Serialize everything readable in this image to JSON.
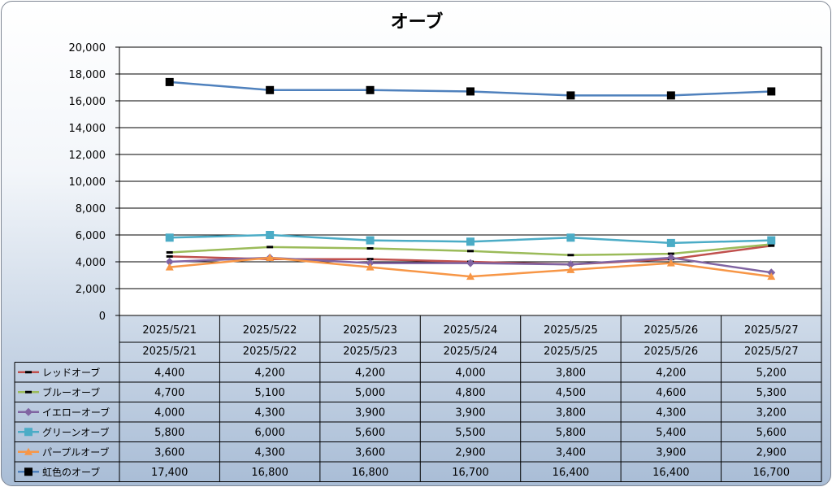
{
  "chart_data": {
    "type": "line",
    "title": "オーブ",
    "categories": [
      "2025/5/21",
      "2025/5/22",
      "2025/5/23",
      "2025/5/24",
      "2025/5/25",
      "2025/5/26",
      "2025/5/27"
    ],
    "ylim": [
      0,
      20000
    ],
    "yticks": [
      "0",
      "2,000",
      "4,000",
      "6,000",
      "8,000",
      "10,000",
      "12,000",
      "14,000",
      "16,000",
      "18,000",
      "20,000"
    ],
    "grid": true,
    "data_table": true,
    "series": [
      {
        "name": "レッドオーブ",
        "color": "#c0504d",
        "marker": "dash",
        "values": [
          4400,
          4200,
          4200,
          4000,
          3800,
          4200,
          5200
        ],
        "labels": [
          "4,400",
          "4,200",
          "4,200",
          "4,000",
          "3,800",
          "4,200",
          "5,200"
        ]
      },
      {
        "name": "ブルーオーブ",
        "color": "#9bbb59",
        "marker": "dash",
        "values": [
          4700,
          5100,
          5000,
          4800,
          4500,
          4600,
          5300
        ],
        "labels": [
          "4,700",
          "5,100",
          "5,000",
          "4,800",
          "4,500",
          "4,600",
          "5,300"
        ]
      },
      {
        "name": "イエローオーブ",
        "color": "#8064a2",
        "marker": "diamond",
        "values": [
          4000,
          4300,
          3900,
          3900,
          3800,
          4300,
          3200
        ],
        "labels": [
          "4,000",
          "4,300",
          "3,900",
          "3,900",
          "3,800",
          "4,300",
          "3,200"
        ]
      },
      {
        "name": "グリーンオーブ",
        "color": "#4bacc6",
        "marker": "square",
        "values": [
          5800,
          6000,
          5600,
          5500,
          5800,
          5400,
          5600
        ],
        "labels": [
          "5,800",
          "6,000",
          "5,600",
          "5,500",
          "5,800",
          "5,400",
          "5,600"
        ]
      },
      {
        "name": "パープルオーブ",
        "color": "#f79646",
        "marker": "triangle",
        "values": [
          3600,
          4300,
          3600,
          2900,
          3400,
          3900,
          2900
        ],
        "labels": [
          "3,600",
          "4,300",
          "3,600",
          "2,900",
          "3,400",
          "3,900",
          "2,900"
        ]
      },
      {
        "name": "虹色のオーブ",
        "color": "#4f81bd",
        "marker": "square-black",
        "values": [
          17400,
          16800,
          16800,
          16700,
          16400,
          16400,
          16700
        ],
        "labels": [
          "17,400",
          "16,800",
          "16,800",
          "16,700",
          "16,400",
          "16,400",
          "16,700"
        ]
      }
    ]
  }
}
